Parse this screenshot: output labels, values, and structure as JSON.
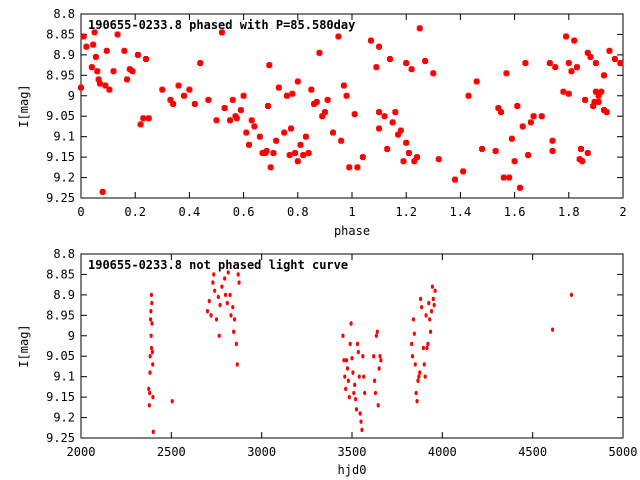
{
  "chart_data": [
    {
      "type": "scatter",
      "title": "190655-0233.8 phased with P=85.580day",
      "xlabel": "phase",
      "ylabel": "I[mag]",
      "xlim": [
        0,
        2
      ],
      "ylim": [
        9.25,
        8.8
      ],
      "y_inverted": true,
      "xticks": [
        0,
        0.2,
        0.4,
        0.6,
        0.8,
        1,
        1.2,
        1.4,
        1.6,
        1.8,
        2
      ],
      "xtick_labels": [
        "0",
        "0.2",
        "0.4",
        "0.6",
        "0.8",
        "1",
        "1.2",
        "1.4",
        "1.6",
        "1.8",
        "2"
      ],
      "yticks": [
        8.8,
        8.85,
        8.9,
        8.95,
        9.0,
        9.05,
        9.1,
        9.15,
        9.2,
        9.25
      ],
      "ytick_labels": [
        "8.8",
        "8.85",
        "8.9",
        "8.95",
        "9",
        "9.05",
        "9.1",
        "9.15",
        "9.2",
        "9.25"
      ],
      "marker_color": "#ff0000",
      "points": [
        [
          0.0,
          8.98
        ],
        [
          0.01,
          8.855
        ],
        [
          0.02,
          8.88
        ],
        [
          0.04,
          8.93
        ],
        [
          0.045,
          8.875
        ],
        [
          0.05,
          8.845
        ],
        [
          0.055,
          8.905
        ],
        [
          0.06,
          8.94
        ],
        [
          0.065,
          8.96
        ],
        [
          0.07,
          8.97
        ],
        [
          0.08,
          9.235
        ],
        [
          0.09,
          8.975
        ],
        [
          0.095,
          8.89
        ],
        [
          0.105,
          8.985
        ],
        [
          0.12,
          8.94
        ],
        [
          0.135,
          8.85
        ],
        [
          0.16,
          8.89
        ],
        [
          0.17,
          8.96
        ],
        [
          0.18,
          8.935
        ],
        [
          0.19,
          8.94
        ],
        [
          0.21,
          8.9
        ],
        [
          0.22,
          9.07
        ],
        [
          0.23,
          9.055
        ],
        [
          0.24,
          8.91
        ],
        [
          0.25,
          9.055
        ],
        [
          0.3,
          8.985
        ],
        [
          0.33,
          9.01
        ],
        [
          0.34,
          9.02
        ],
        [
          0.36,
          8.975
        ],
        [
          0.38,
          9.0
        ],
        [
          0.4,
          8.985
        ],
        [
          0.42,
          9.02
        ],
        [
          0.44,
          8.92
        ],
        [
          0.47,
          9.01
        ],
        [
          0.5,
          9.06
        ],
        [
          0.52,
          8.845
        ],
        [
          0.53,
          9.03
        ],
        [
          0.55,
          9.06
        ],
        [
          0.56,
          9.01
        ],
        [
          0.57,
          9.05
        ],
        [
          0.575,
          9.055
        ],
        [
          0.59,
          9.035
        ],
        [
          0.6,
          9.0
        ],
        [
          0.61,
          9.09
        ],
        [
          0.62,
          9.12
        ],
        [
          0.63,
          9.06
        ],
        [
          0.64,
          9.075
        ],
        [
          0.66,
          9.1
        ],
        [
          0.67,
          9.14
        ],
        [
          0.68,
          9.14
        ],
        [
          0.685,
          9.135
        ],
        [
          0.69,
          9.025
        ],
        [
          0.695,
          8.925
        ],
        [
          0.7,
          9.175
        ],
        [
          0.71,
          9.14
        ],
        [
          0.72,
          9.11
        ],
        [
          0.73,
          8.98
        ],
        [
          0.75,
          9.09
        ],
        [
          0.76,
          9.0
        ],
        [
          0.77,
          9.145
        ],
        [
          0.775,
          9.08
        ],
        [
          0.78,
          8.995
        ],
        [
          0.79,
          9.14
        ],
        [
          0.8,
          8.965
        ],
        [
          0.8,
          9.16
        ],
        [
          0.81,
          9.12
        ],
        [
          0.82,
          9.145
        ],
        [
          0.83,
          9.1
        ],
        [
          0.84,
          9.14
        ],
        [
          0.85,
          8.985
        ],
        [
          0.86,
          9.02
        ],
        [
          0.87,
          9.015
        ],
        [
          0.88,
          8.895
        ],
        [
          0.89,
          9.05
        ],
        [
          0.9,
          9.04
        ],
        [
          0.91,
          9.01
        ],
        [
          0.93,
          9.09
        ],
        [
          0.95,
          8.855
        ],
        [
          0.96,
          9.11
        ],
        [
          0.97,
          8.975
        ],
        [
          0.98,
          9.0
        ],
        [
          0.99,
          9.175
        ],
        [
          1.01,
          9.045
        ],
        [
          1.02,
          9.175
        ],
        [
          1.04,
          9.15
        ],
        [
          1.07,
          8.865
        ],
        [
          1.09,
          8.93
        ],
        [
          1.1,
          8.88
        ],
        [
          1.1,
          9.04
        ],
        [
          1.1,
          9.08
        ],
        [
          1.12,
          9.05
        ],
        [
          1.13,
          9.13
        ],
        [
          1.14,
          8.91
        ],
        [
          1.15,
          9.065
        ],
        [
          1.16,
          9.04
        ],
        [
          1.17,
          9.095
        ],
        [
          1.18,
          9.085
        ],
        [
          1.19,
          9.16
        ],
        [
          1.2,
          8.92
        ],
        [
          1.2,
          9.115
        ],
        [
          1.21,
          9.14
        ],
        [
          1.22,
          8.935
        ],
        [
          1.23,
          9.16
        ],
        [
          1.24,
          9.15
        ],
        [
          1.25,
          8.835
        ],
        [
          1.27,
          8.915
        ],
        [
          1.3,
          8.945
        ],
        [
          1.32,
          9.155
        ],
        [
          1.38,
          9.205
        ],
        [
          1.41,
          9.185
        ],
        [
          1.43,
          9.0
        ],
        [
          1.46,
          8.965
        ],
        [
          1.48,
          9.13
        ],
        [
          1.53,
          9.135
        ],
        [
          1.54,
          9.03
        ],
        [
          1.55,
          9.04
        ],
        [
          1.56,
          9.2
        ],
        [
          1.57,
          8.945
        ],
        [
          1.58,
          9.2
        ],
        [
          1.59,
          9.105
        ],
        [
          1.6,
          9.16
        ],
        [
          1.61,
          9.025
        ],
        [
          1.62,
          9.225
        ],
        [
          1.63,
          9.075
        ],
        [
          1.64,
          8.92
        ],
        [
          1.65,
          9.145
        ],
        [
          1.66,
          9.065
        ],
        [
          1.67,
          9.05
        ],
        [
          1.7,
          9.05
        ],
        [
          1.73,
          8.92
        ],
        [
          1.74,
          9.11
        ],
        [
          1.74,
          9.135
        ],
        [
          1.75,
          8.93
        ],
        [
          1.78,
          8.99
        ],
        [
          1.79,
          8.855
        ],
        [
          1.8,
          8.995
        ],
        [
          1.8,
          8.92
        ],
        [
          1.81,
          8.94
        ],
        [
          1.82,
          8.865
        ],
        [
          1.83,
          8.93
        ],
        [
          1.84,
          9.155
        ],
        [
          1.845,
          9.13
        ],
        [
          1.85,
          9.16
        ],
        [
          1.86,
          9.01
        ],
        [
          1.87,
          9.14
        ],
        [
          1.87,
          8.895
        ],
        [
          1.88,
          8.905
        ],
        [
          1.89,
          9.025
        ],
        [
          1.895,
          9.015
        ],
        [
          1.9,
          8.92
        ],
        [
          1.9,
          8.99
        ],
        [
          1.91,
          9.0
        ],
        [
          1.91,
          9.015
        ],
        [
          1.92,
          8.99
        ],
        [
          1.93,
          8.95
        ],
        [
          1.93,
          9.035
        ],
        [
          1.94,
          9.04
        ],
        [
          1.95,
          8.89
        ],
        [
          1.97,
          8.91
        ],
        [
          1.99,
          8.92
        ]
      ]
    },
    {
      "type": "scatter",
      "title": "190655-0233.8 not phased light curve",
      "xlabel": "hjd0",
      "ylabel": "I[mag]",
      "xlim": [
        2000,
        5000
      ],
      "ylim": [
        9.25,
        8.8
      ],
      "y_inverted": true,
      "xticks": [
        2000,
        2500,
        3000,
        3500,
        4000,
        4500,
        5000
      ],
      "xtick_labels": [
        "2000",
        "2500",
        "3000",
        "3500",
        "4000",
        "4500",
        "5000"
      ],
      "yticks": [
        8.8,
        8.85,
        8.9,
        8.95,
        9.0,
        9.05,
        9.1,
        9.15,
        9.2,
        9.25
      ],
      "ytick_labels": [
        "8.8",
        "8.85",
        "8.9",
        "8.95",
        "9",
        "9.05",
        "9.1",
        "9.15",
        "9.2",
        "9.25"
      ],
      "marker_color": "#ff0000",
      "points": [
        [
          2375,
          9.13
        ],
        [
          2378,
          9.17
        ],
        [
          2380,
          9.14
        ],
        [
          2382,
          9.09
        ],
        [
          2383,
          9.05
        ],
        [
          2385,
          8.96
        ],
        [
          2387,
          8.94
        ],
        [
          2388,
          9.0
        ],
        [
          2390,
          8.9
        ],
        [
          2390,
          9.03
        ],
        [
          2392,
          8.92
        ],
        [
          2393,
          8.97
        ],
        [
          2395,
          9.04
        ],
        [
          2397,
          9.07
        ],
        [
          2398,
          9.15
        ],
        [
          2400,
          9.235
        ],
        [
          2505,
          9.16
        ],
        [
          2700,
          8.94
        ],
        [
          2710,
          8.915
        ],
        [
          2720,
          8.95
        ],
        [
          2730,
          8.87
        ],
        [
          2735,
          8.85
        ],
        [
          2740,
          8.89
        ],
        [
          2750,
          8.96
        ],
        [
          2760,
          8.905
        ],
        [
          2765,
          9.0
        ],
        [
          2770,
          8.925
        ],
        [
          2780,
          8.88
        ],
        [
          2795,
          8.86
        ],
        [
          2800,
          8.9
        ],
        [
          2810,
          8.92
        ],
        [
          2815,
          8.845
        ],
        [
          2825,
          8.9
        ],
        [
          2830,
          8.95
        ],
        [
          2840,
          8.93
        ],
        [
          2845,
          8.99
        ],
        [
          2850,
          8.96
        ],
        [
          2860,
          9.02
        ],
        [
          2865,
          9.07
        ],
        [
          2870,
          8.85
        ],
        [
          2875,
          8.87
        ],
        [
          3450,
          9.0
        ],
        [
          3455,
          9.06
        ],
        [
          3460,
          9.1
        ],
        [
          3465,
          9.13
        ],
        [
          3470,
          9.06
        ],
        [
          3475,
          9.08
        ],
        [
          3480,
          9.11
        ],
        [
          3485,
          9.15
        ],
        [
          3490,
          9.02
        ],
        [
          3495,
          8.97
        ],
        [
          3500,
          9.055
        ],
        [
          3505,
          9.09
        ],
        [
          3510,
          9.14
        ],
        [
          3515,
          9.12
        ],
        [
          3520,
          9.155
        ],
        [
          3525,
          9.18
        ],
        [
          3530,
          9.02
        ],
        [
          3535,
          9.04
        ],
        [
          3540,
          9.1
        ],
        [
          3545,
          9.19
        ],
        [
          3550,
          9.21
        ],
        [
          3555,
          9.23
        ],
        [
          3560,
          9.05
        ],
        [
          3565,
          9.1
        ],
        [
          3570,
          9.14
        ],
        [
          3620,
          9.05
        ],
        [
          3625,
          9.11
        ],
        [
          3630,
          9.14
        ],
        [
          3635,
          9.0
        ],
        [
          3640,
          8.99
        ],
        [
          3645,
          9.17
        ],
        [
          3650,
          9.08
        ],
        [
          3655,
          9.05
        ],
        [
          3660,
          9.06
        ],
        [
          3830,
          9.02
        ],
        [
          3835,
          9.05
        ],
        [
          3840,
          8.96
        ],
        [
          3845,
          8.995
        ],
        [
          3850,
          9.07
        ],
        [
          3855,
          9.14
        ],
        [
          3860,
          9.16
        ],
        [
          3865,
          9.11
        ],
        [
          3870,
          9.1
        ],
        [
          3875,
          9.09
        ],
        [
          3880,
          8.91
        ],
        [
          3885,
          8.93
        ],
        [
          3895,
          9.03
        ],
        [
          3900,
          9.07
        ],
        [
          3905,
          9.1
        ],
        [
          3910,
          8.95
        ],
        [
          3915,
          9.03
        ],
        [
          3920,
          9.02
        ],
        [
          3925,
          8.92
        ],
        [
          3930,
          8.96
        ],
        [
          3935,
          8.99
        ],
        [
          3940,
          8.94
        ],
        [
          3945,
          8.88
        ],
        [
          3950,
          8.91
        ],
        [
          3955,
          8.925
        ],
        [
          3960,
          8.89
        ],
        [
          4610,
          8.985
        ],
        [
          4715,
          8.9
        ]
      ]
    }
  ]
}
